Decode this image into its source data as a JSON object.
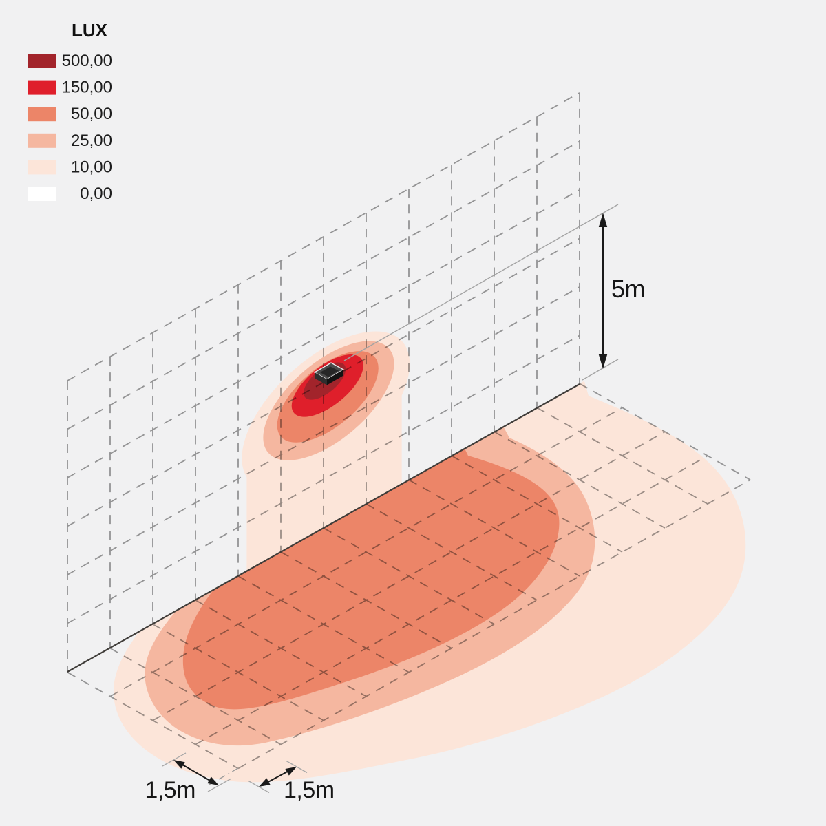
{
  "legend": {
    "title": "LUX",
    "items": [
      {
        "label": "500,00",
        "color": "#a2242b"
      },
      {
        "label": "150,00",
        "color": "#df1f2b"
      },
      {
        "label": "50,00",
        "color": "#ec8568"
      },
      {
        "label": "25,00",
        "color": "#f5b7a0"
      },
      {
        "label": "10,00",
        "color": "#fce5d9"
      },
      {
        "label": "0,00",
        "color": "#ffffff"
      }
    ]
  },
  "dimensions": {
    "wall_height_label": "5m",
    "floor_cell_depth_label": "1,5m",
    "floor_cell_width_label": "1,5m"
  },
  "scene": {
    "background_color": "#f1f1f2",
    "grid_color": "#8b8b8b",
    "edge_color": "#3f3c39",
    "fixture": "wall-mounted-luminaire"
  }
}
